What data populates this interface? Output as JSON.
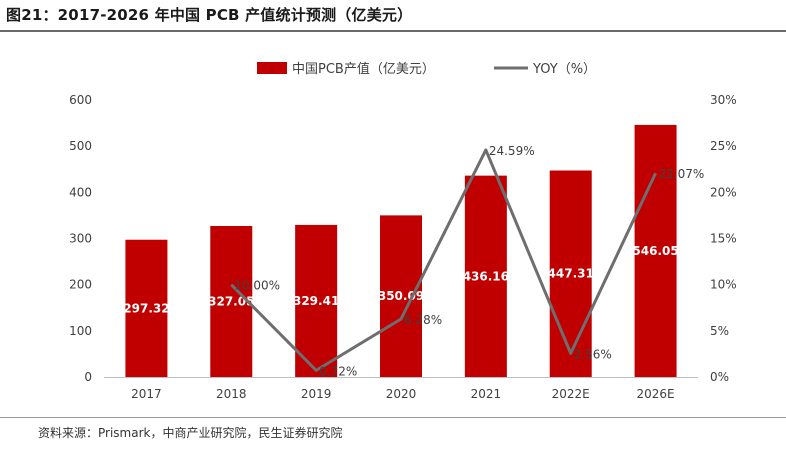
{
  "figure": {
    "title": "图21：2017-2026 年中国 PCB 产值统计预测（亿美元）",
    "source": "资料来源：Prismark，中商产业研究院，民生证券研究院"
  },
  "chart_data": {
    "type": "bar",
    "categories": [
      "2017",
      "2018",
      "2019",
      "2020",
      "2021",
      "2022E",
      "2026E"
    ],
    "series": [
      {
        "name": "中国PCB产值（亿美元）",
        "type": "bar",
        "axis": "left",
        "color": "#c00000",
        "values": [
          297.32,
          327.05,
          329.41,
          350.09,
          436.16,
          447.31,
          546.05
        ],
        "labels": [
          "297.32",
          "327.05",
          "329.41",
          "350.09",
          "436.16",
          "447.31",
          "546.05"
        ]
      },
      {
        "name": "YOY（%）",
        "type": "line",
        "axis": "right",
        "color": "#6e6e6e",
        "values": [
          null,
          10.0,
          0.72,
          6.28,
          24.59,
          2.56,
          22.07
        ],
        "labels": [
          "",
          "10.00%",
          "0.72%",
          "6.28%",
          "24.59%",
          "2.56%",
          "22.07%"
        ]
      }
    ],
    "y_left": {
      "range": [
        0,
        600
      ],
      "ticks": [
        "0",
        "100",
        "200",
        "300",
        "400",
        "500",
        "600"
      ]
    },
    "y_right": {
      "range": [
        0,
        30
      ],
      "ticks": [
        "0%",
        "5%",
        "10%",
        "15%",
        "20%",
        "25%",
        "30%"
      ]
    },
    "grid": false,
    "legend_position": "top-center"
  }
}
